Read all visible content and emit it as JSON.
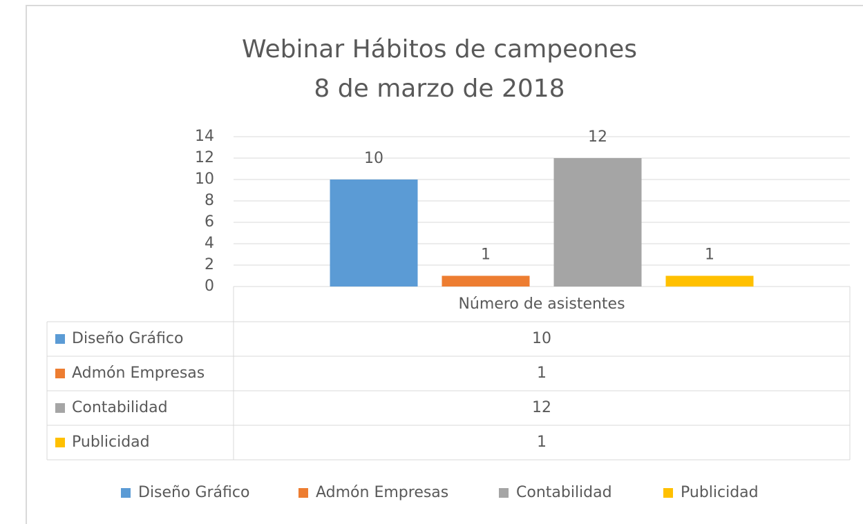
{
  "chart_data": {
    "type": "bar",
    "title": "Webinar Hábitos de campeones",
    "subtitle": "8 de marzo de 2018",
    "categories": [
      "Número de asistentes"
    ],
    "series": [
      {
        "name": "Diseño Gráfico",
        "color": "#5b9bd5",
        "values": [
          10
        ]
      },
      {
        "name": "Admón Empresas",
        "color": "#ed7d31",
        "values": [
          1
        ]
      },
      {
        "name": "Contabilidad",
        "color": "#a5a5a5",
        "values": [
          12
        ]
      },
      {
        "name": "Publicidad",
        "color": "#ffc000",
        "values": [
          1
        ]
      }
    ],
    "ylim": [
      0,
      14
    ],
    "yticks": [
      0,
      2,
      4,
      6,
      8,
      10,
      12,
      14
    ],
    "grid": true,
    "legend": "bottom",
    "data_table": true
  }
}
